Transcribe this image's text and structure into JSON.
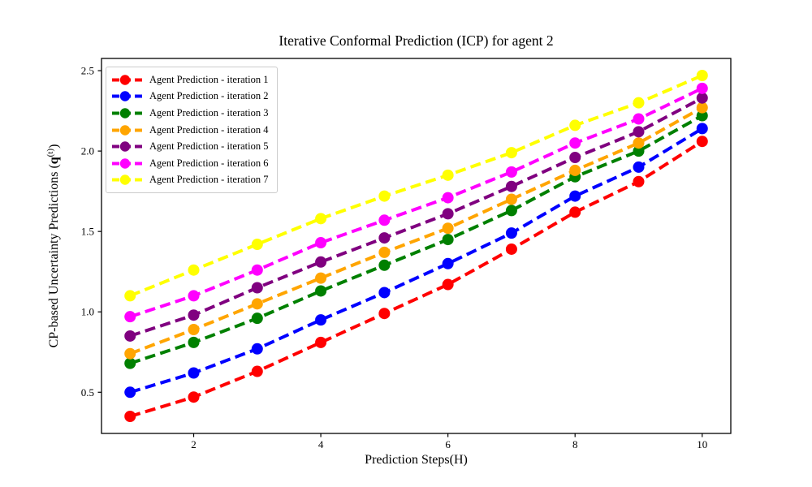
{
  "chart_data": {
    "type": "line",
    "title": "Iterative Conformal Prediction (ICP) for agent 2",
    "xlabel": "Prediction Steps(H)",
    "ylabel": "CP-based Uncertainty Predictions (q^(t))",
    "ylabel_parts": {
      "prefix": "CP-based Uncertainty Predictions (",
      "q": "q",
      "sup": "(t)",
      "suffix": ")"
    },
    "x": [
      1,
      2,
      3,
      4,
      5,
      6,
      7,
      8,
      9,
      10
    ],
    "xlim": [
      0.55,
      10.45
    ],
    "ylim": [
      0.244,
      2.576
    ],
    "xtick_values": [
      2,
      4,
      6,
      8,
      10
    ],
    "xtick_labels": [
      "2",
      "4",
      "6",
      "8",
      "10"
    ],
    "ytick_values": [
      0.5,
      1.0,
      1.5,
      2.0,
      2.5
    ],
    "ytick_labels": [
      "0.5",
      "1.0",
      "1.5",
      "2.0",
      "2.5"
    ],
    "grid": false,
    "legend_position": "upper left",
    "line_style": "dashed",
    "marker": "circle",
    "series": [
      {
        "name": "Agent Prediction - iteration 1",
        "color": "#FF0000",
        "values": [
          0.35,
          0.47,
          0.63,
          0.81,
          0.99,
          1.17,
          1.39,
          1.62,
          1.81,
          2.06
        ]
      },
      {
        "name": "Agent Prediction - iteration 2",
        "color": "#0000FF",
        "values": [
          0.5,
          0.62,
          0.77,
          0.95,
          1.12,
          1.3,
          1.49,
          1.72,
          1.9,
          2.14
        ]
      },
      {
        "name": "Agent Prediction - iteration 3",
        "color": "#008000",
        "values": [
          0.68,
          0.81,
          0.96,
          1.13,
          1.29,
          1.45,
          1.63,
          1.84,
          2.0,
          2.22
        ]
      },
      {
        "name": "Agent Prediction - iteration 4",
        "color": "#FFA500",
        "values": [
          0.74,
          0.89,
          1.05,
          1.21,
          1.37,
          1.52,
          1.7,
          1.88,
          2.05,
          2.27
        ]
      },
      {
        "name": "Agent Prediction - iteration 5",
        "color": "#800080",
        "values": [
          0.85,
          0.98,
          1.15,
          1.31,
          1.46,
          1.61,
          1.78,
          1.96,
          2.12,
          2.33
        ]
      },
      {
        "name": "Agent Prediction - iteration 6",
        "color": "#FF00FF",
        "values": [
          0.97,
          1.1,
          1.26,
          1.43,
          1.57,
          1.71,
          1.87,
          2.05,
          2.2,
          2.39
        ]
      },
      {
        "name": "Agent Prediction - iteration 7",
        "color": "#FFFF00",
        "values": [
          1.1,
          1.26,
          1.42,
          1.58,
          1.72,
          1.85,
          1.99,
          2.16,
          2.3,
          2.47
        ]
      }
    ],
    "axis_color": "#000000",
    "legend_border_color": "#cccccc"
  }
}
